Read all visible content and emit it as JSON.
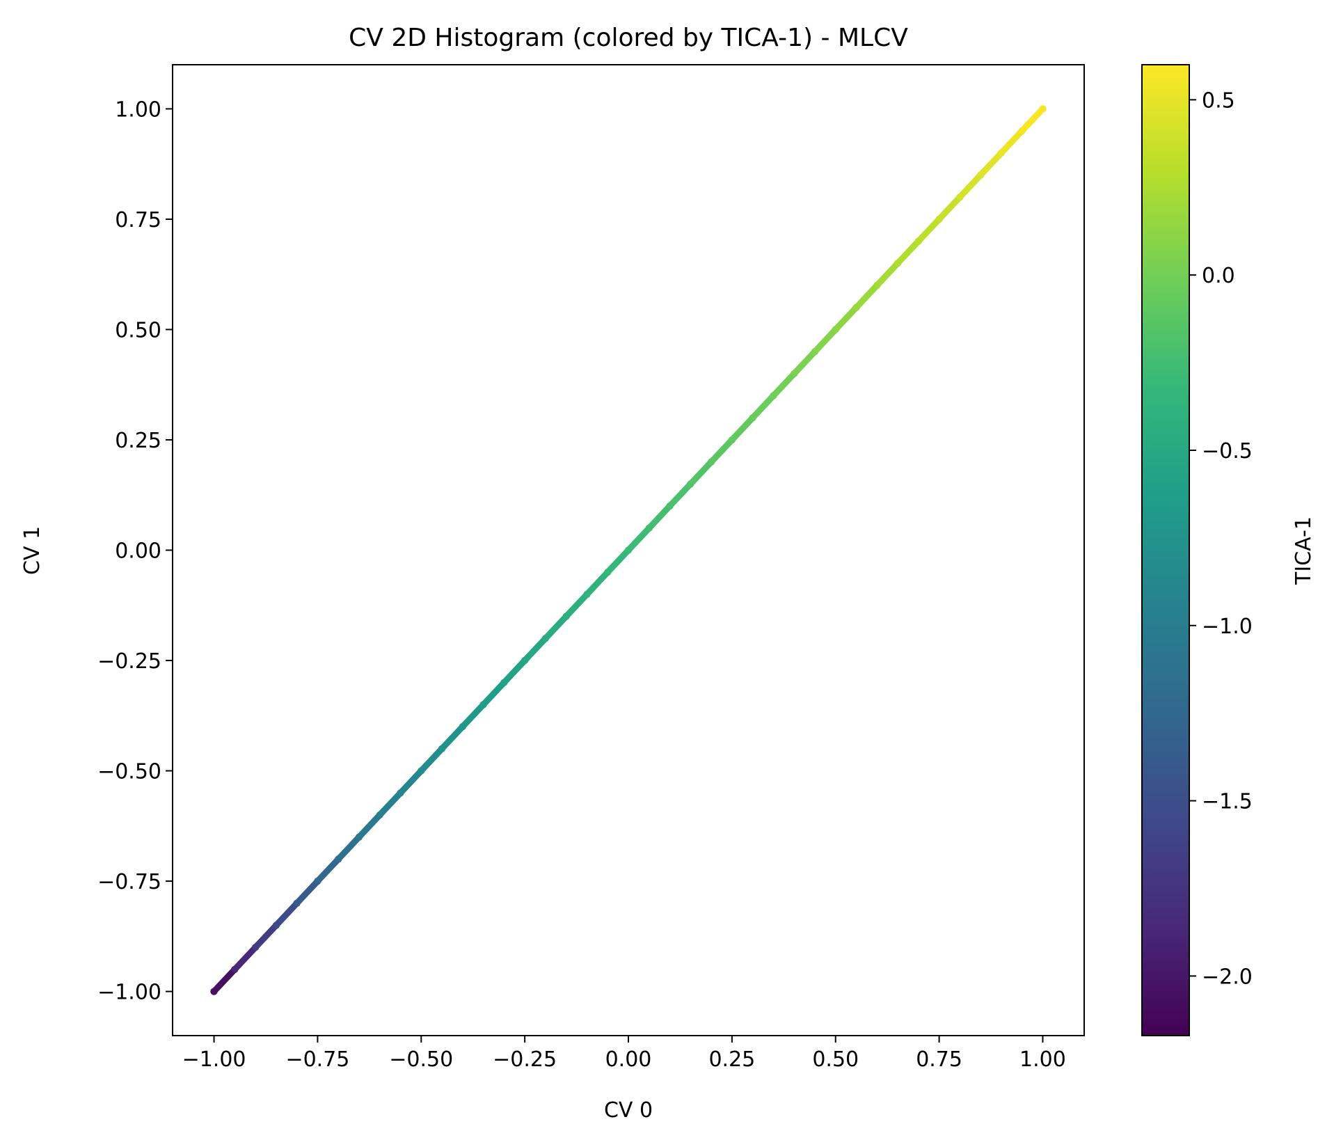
{
  "chart_data": {
    "type": "scatter",
    "title": "CV 2D Histogram (colored by TICA-1) - MLCV",
    "xlabel": "CV 0",
    "ylabel": "CV 1",
    "xlim": [
      -1.1,
      1.1
    ],
    "ylim": [
      -1.1,
      1.1
    ],
    "x_ticks": [
      -1.0,
      -0.75,
      -0.5,
      -0.25,
      0.0,
      0.25,
      0.5,
      0.75,
      1.0
    ],
    "x_tick_labels": [
      "−1.00",
      "−0.75",
      "−0.50",
      "−0.25",
      "0.00",
      "0.25",
      "0.50",
      "0.75",
      "1.00"
    ],
    "y_ticks": [
      -1.0,
      -0.75,
      -0.5,
      -0.25,
      0.0,
      0.25,
      0.5,
      0.75,
      1.0
    ],
    "y_tick_labels": [
      "−1.00",
      "−0.75",
      "−0.50",
      "−0.25",
      "0.00",
      "0.25",
      "0.50",
      "0.75",
      "1.00"
    ],
    "grid": false,
    "legend": "none",
    "colormap": "viridis",
    "colorbar": {
      "label": "TICA-1",
      "range": [
        -2.17,
        0.6
      ],
      "ticks": [
        -2.0,
        -1.5,
        -1.0,
        -0.5,
        0.0,
        0.5
      ],
      "tick_labels": [
        "−2.0",
        "−1.5",
        "−1.0",
        "−0.5",
        "0.0",
        "0.5"
      ],
      "stops": [
        "#440154",
        "#482878",
        "#3e4989",
        "#31688e",
        "#26828e",
        "#1f9e89",
        "#35b779",
        "#6ece58",
        "#b5de2b",
        "#fde725"
      ]
    },
    "series": [
      {
        "x": [
          -1.0,
          -0.95,
          -0.9,
          -0.85,
          -0.8,
          -0.75,
          -0.7,
          -0.65,
          -0.6,
          -0.55,
          -0.5,
          -0.45,
          -0.4,
          -0.35,
          -0.3,
          -0.25,
          -0.2,
          -0.15,
          -0.1,
          -0.05,
          0.0,
          0.05,
          0.1,
          0.15,
          0.2,
          0.25,
          0.3,
          0.35,
          0.4,
          0.45,
          0.5,
          0.55,
          0.6,
          0.65,
          0.7,
          0.75,
          0.8,
          0.85,
          0.9,
          0.95,
          1.0
        ],
        "y": [
          -1.0,
          -0.95,
          -0.9,
          -0.85,
          -0.8,
          -0.75,
          -0.7,
          -0.65,
          -0.6,
          -0.55,
          -0.5,
          -0.45,
          -0.4,
          -0.35,
          -0.3,
          -0.25,
          -0.2,
          -0.15,
          -0.1,
          -0.05,
          0.0,
          0.05,
          0.1,
          0.15,
          0.2,
          0.25,
          0.3,
          0.35,
          0.4,
          0.45,
          0.5,
          0.55,
          0.6,
          0.65,
          0.7,
          0.75,
          0.8,
          0.85,
          0.9,
          0.95,
          1.0
        ],
        "color_values": [
          -2.15,
          -1.95,
          -1.75,
          -1.6,
          -1.45,
          -1.3,
          -1.2,
          -1.1,
          -1.0,
          -0.92,
          -0.85,
          -0.78,
          -0.72,
          -0.66,
          -0.6,
          -0.55,
          -0.5,
          -0.45,
          -0.4,
          -0.35,
          -0.3,
          -0.26,
          -0.22,
          -0.18,
          -0.14,
          -0.1,
          -0.06,
          -0.02,
          0.02,
          0.06,
          0.1,
          0.15,
          0.2,
          0.25,
          0.3,
          0.35,
          0.4,
          0.45,
          0.5,
          0.55,
          0.6
        ]
      }
    ]
  }
}
